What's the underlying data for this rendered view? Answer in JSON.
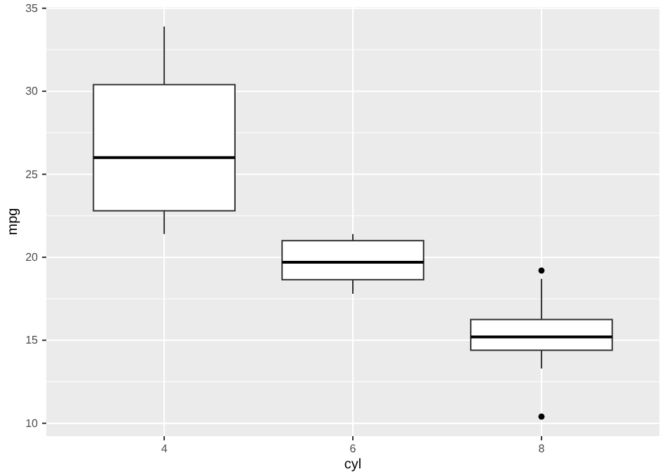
{
  "chart_data": {
    "type": "box",
    "xlabel": "cyl",
    "ylabel": "mpg",
    "categories": [
      "4",
      "6",
      "8"
    ],
    "boxes": [
      {
        "low": 21.4,
        "q1": 22.8,
        "median": 26,
        "q3": 30.4,
        "high": 33.9
      },
      {
        "low": 17.8,
        "q1": 18.65,
        "median": 19.7,
        "q3": 21,
        "high": 21.4
      },
      {
        "low": 13.3,
        "q1": 14.4,
        "median": 15.2,
        "q3": 16.25,
        "high": 18.7,
        "outliers": [
          10.4,
          19.2
        ]
      }
    ],
    "ylim": [
      9.225,
      35.075
    ],
    "yticks": [
      10,
      15,
      20,
      25,
      30,
      35
    ],
    "grid": true
  }
}
